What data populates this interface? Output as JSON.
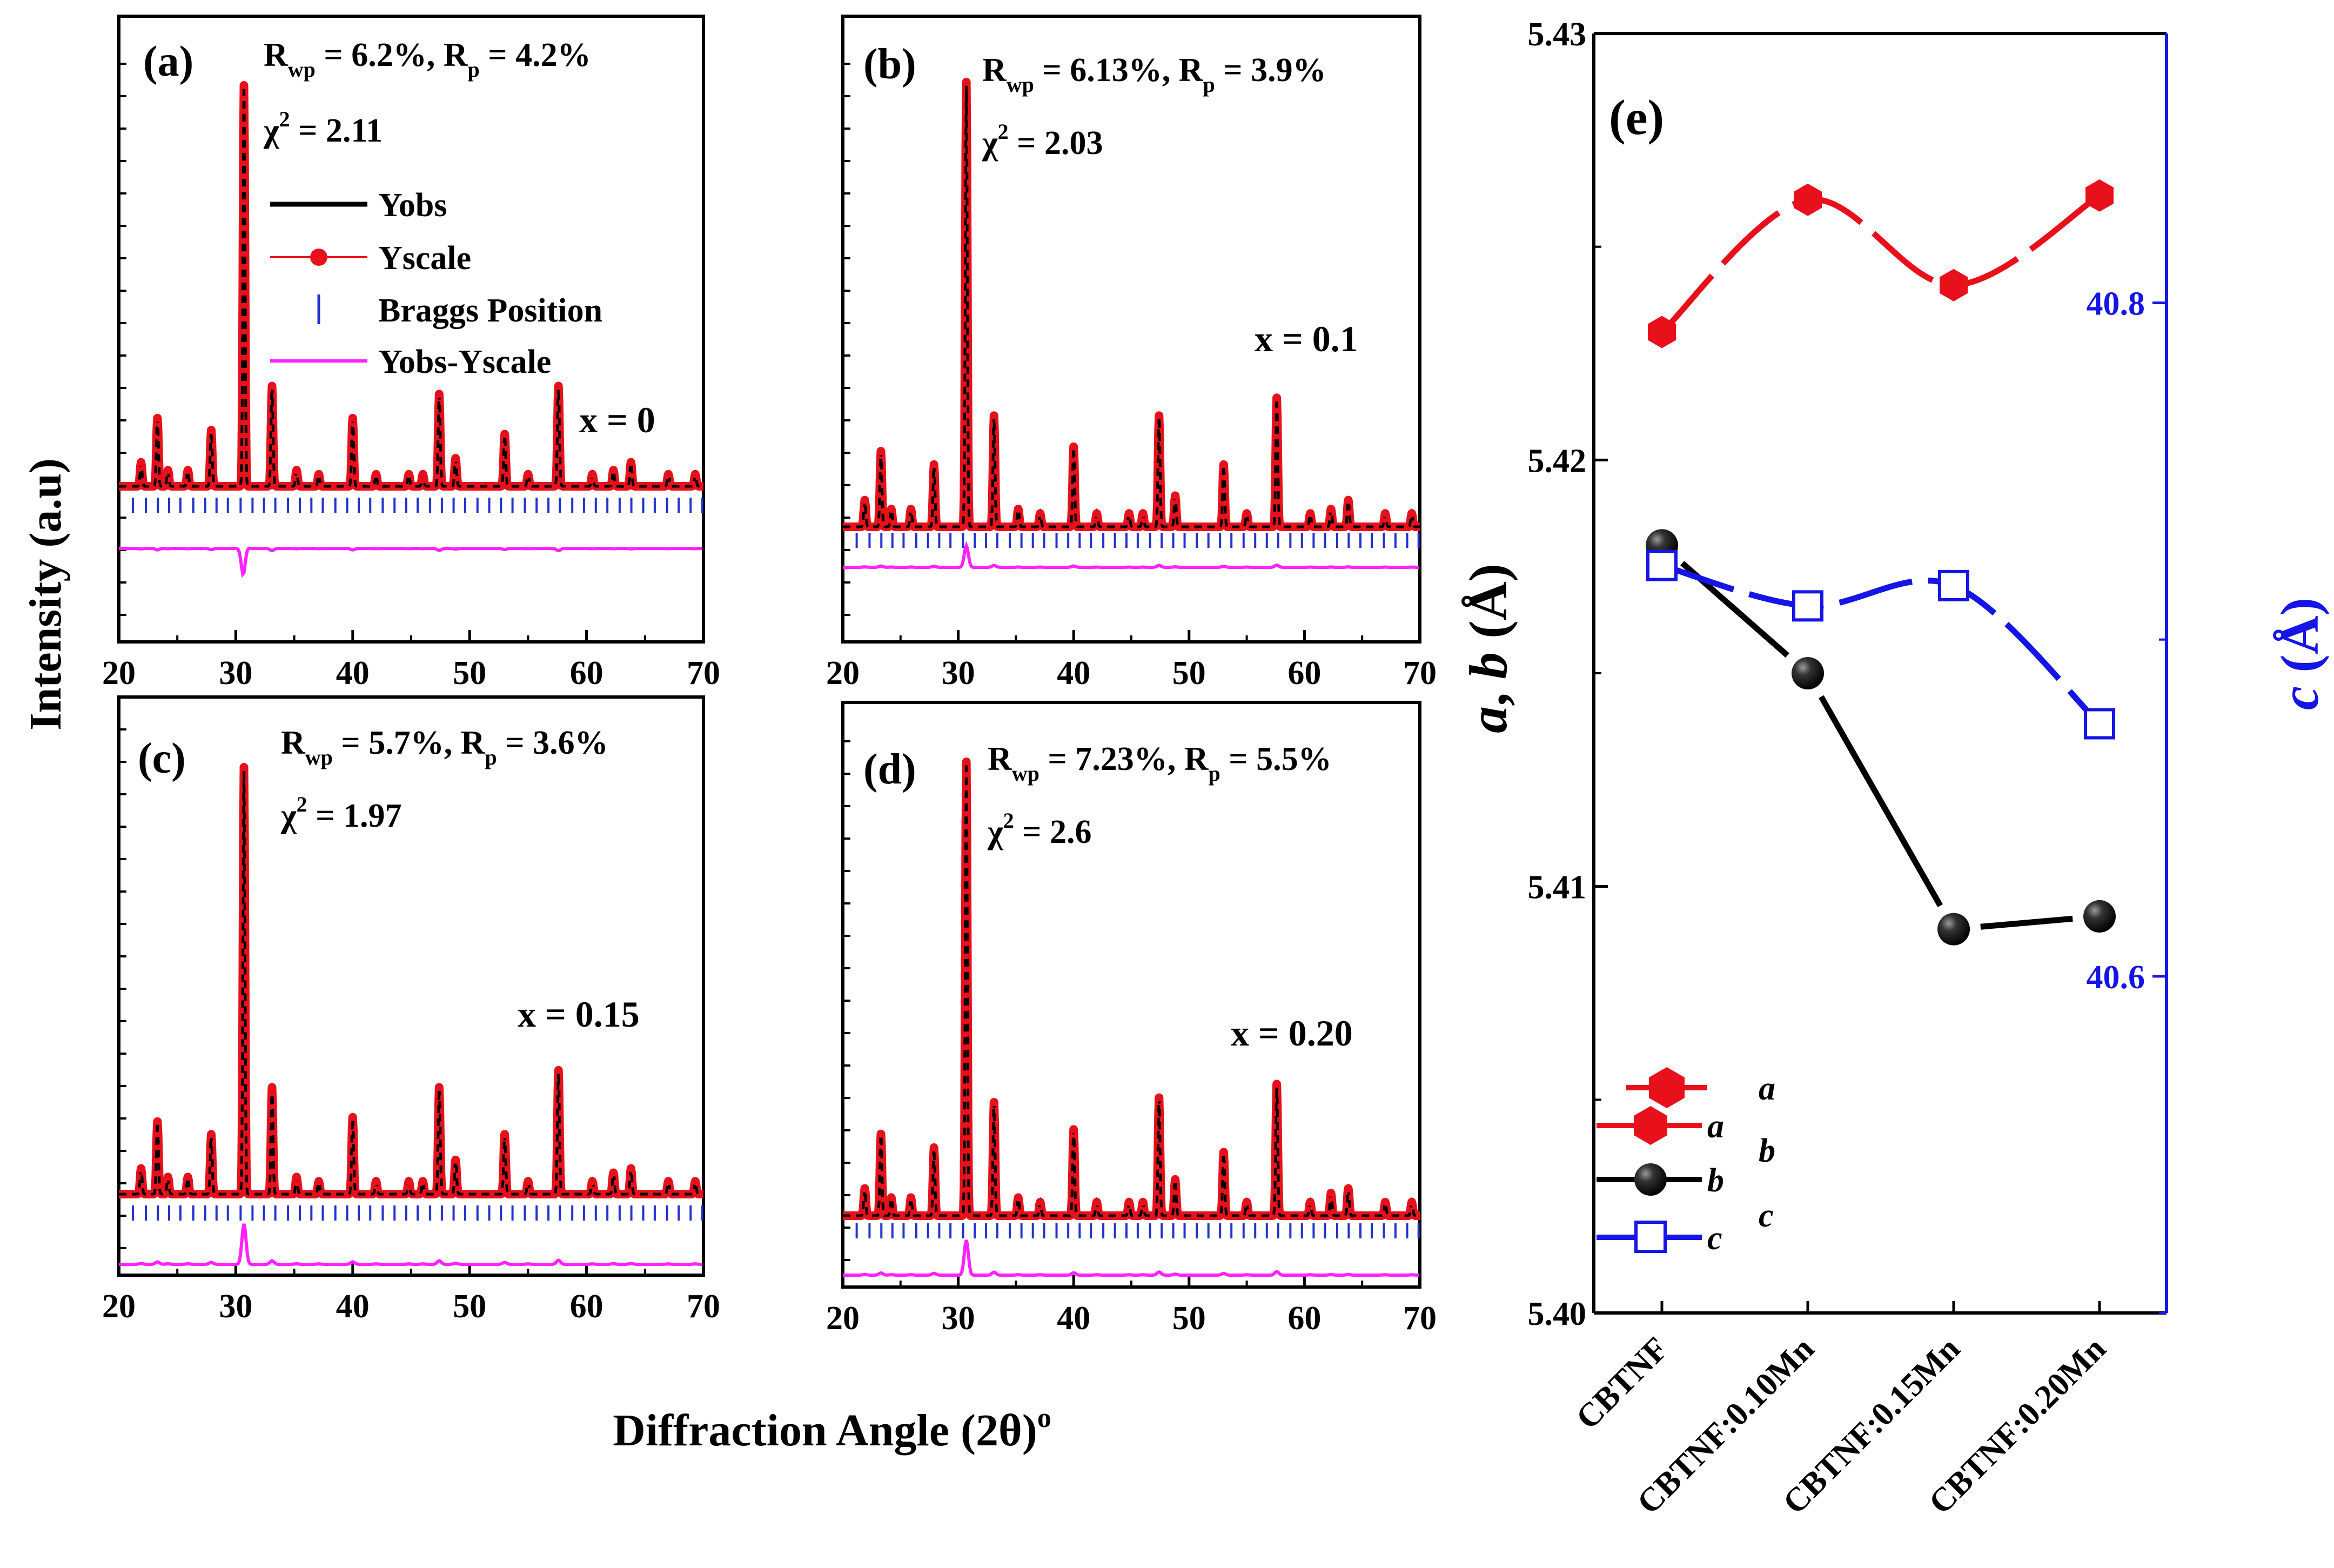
{
  "figure": {
    "y_axis_label": "Intensity (a.u)",
    "x_axis_label": "Diffraction Angle (2θ)",
    "x_axis_label_sup": "o"
  },
  "legend": {
    "yobs": "Yobs",
    "yscale": "Yscale",
    "bragg": "Braggs Position",
    "diff": "Yobs-Yscale"
  },
  "panels": [
    {
      "tag": "(a)",
      "rwp": "6.2%",
      "rp": "4.2%",
      "chi2": "2.11",
      "composition": "x = 0"
    },
    {
      "tag": "(b)",
      "rwp": "6.13%",
      "rp": "3.9%",
      "chi2": "2.03",
      "composition": "x = 0.1"
    },
    {
      "tag": "(c)",
      "rwp": "5.7%",
      "rp": "3.6%",
      "chi2": "1.97",
      "composition": "x = 0.15"
    },
    {
      "tag": "(d)",
      "rwp": "7.23%",
      "rp": "5.5%",
      "chi2": "2.6",
      "composition": "x = 0.20"
    }
  ],
  "panel_e": {
    "tag": "(e)",
    "legend": {
      "a_top": "a",
      "a": "a",
      "b_top": "b",
      "b": "b",
      "c_top": "c",
      "c": "c"
    }
  },
  "colors": {
    "yobs": "#000000",
    "yscale": "#e8111b",
    "bragg": "#2233cc",
    "diff": "#ff22ff",
    "right_axis": "#1515e6"
  },
  "chart_data": [
    {
      "type": "line",
      "panel": "(a)",
      "xlim": [
        20,
        70
      ],
      "x_ticks": [
        20,
        30,
        40,
        50,
        60,
        70
      ],
      "series": [
        {
          "name": "Yobs"
        },
        {
          "name": "Yscale"
        },
        {
          "name": "Braggs Position"
        },
        {
          "name": "Yobs-Yscale"
        }
      ],
      "peaks": [
        {
          "x": 21.9,
          "y": 0.06
        },
        {
          "x": 23.3,
          "y": 0.17
        },
        {
          "x": 24.2,
          "y": 0.04
        },
        {
          "x": 25.9,
          "y": 0.04
        },
        {
          "x": 27.9,
          "y": 0.14
        },
        {
          "x": 30.7,
          "y": 1.0
        },
        {
          "x": 33.1,
          "y": 0.25
        },
        {
          "x": 35.2,
          "y": 0.04
        },
        {
          "x": 37.1,
          "y": 0.03
        },
        {
          "x": 40.0,
          "y": 0.17
        },
        {
          "x": 42.0,
          "y": 0.03
        },
        {
          "x": 44.8,
          "y": 0.03
        },
        {
          "x": 46.0,
          "y": 0.03
        },
        {
          "x": 47.4,
          "y": 0.23
        },
        {
          "x": 48.8,
          "y": 0.07
        },
        {
          "x": 53.0,
          "y": 0.13
        },
        {
          "x": 55.0,
          "y": 0.03
        },
        {
          "x": 57.6,
          "y": 0.25
        },
        {
          "x": 60.5,
          "y": 0.03
        },
        {
          "x": 62.3,
          "y": 0.04
        },
        {
          "x": 63.8,
          "y": 0.06
        },
        {
          "x": 67.0,
          "y": 0.03
        },
        {
          "x": 69.3,
          "y": 0.03
        }
      ]
    },
    {
      "type": "line",
      "panel": "(b)",
      "xlim": [
        20,
        70
      ],
      "x_ticks": [
        20,
        30,
        40,
        50,
        60,
        70
      ],
      "series": [
        {
          "name": "Yobs"
        },
        {
          "name": "Yscale"
        },
        {
          "name": "Braggs Position"
        },
        {
          "name": "Yobs-Yscale"
        }
      ],
      "peaks": [
        {
          "x": 21.9,
          "y": 0.06
        },
        {
          "x": 23.3,
          "y": 0.17
        },
        {
          "x": 24.2,
          "y": 0.04
        },
        {
          "x": 25.9,
          "y": 0.04
        },
        {
          "x": 27.9,
          "y": 0.14
        },
        {
          "x": 30.7,
          "y": 1.0
        },
        {
          "x": 33.1,
          "y": 0.25
        },
        {
          "x": 35.2,
          "y": 0.04
        },
        {
          "x": 37.1,
          "y": 0.03
        },
        {
          "x": 40.0,
          "y": 0.18
        },
        {
          "x": 42.0,
          "y": 0.03
        },
        {
          "x": 44.8,
          "y": 0.03
        },
        {
          "x": 46.0,
          "y": 0.03
        },
        {
          "x": 47.4,
          "y": 0.25
        },
        {
          "x": 48.8,
          "y": 0.07
        },
        {
          "x": 53.0,
          "y": 0.14
        },
        {
          "x": 55.0,
          "y": 0.03
        },
        {
          "x": 57.6,
          "y": 0.29
        },
        {
          "x": 60.5,
          "y": 0.03
        },
        {
          "x": 62.3,
          "y": 0.04
        },
        {
          "x": 63.8,
          "y": 0.06
        },
        {
          "x": 67.0,
          "y": 0.03
        },
        {
          "x": 69.3,
          "y": 0.03
        }
      ]
    },
    {
      "type": "line",
      "panel": "(c)",
      "xlim": [
        20,
        70
      ],
      "x_ticks": [
        20,
        30,
        40,
        50,
        60,
        70
      ],
      "series": [
        {
          "name": "Yobs"
        },
        {
          "name": "Yscale"
        },
        {
          "name": "Braggs Position"
        },
        {
          "name": "Yobs-Yscale"
        }
      ],
      "peaks": [
        {
          "x": 21.9,
          "y": 0.06
        },
        {
          "x": 23.3,
          "y": 0.17
        },
        {
          "x": 24.2,
          "y": 0.04
        },
        {
          "x": 25.9,
          "y": 0.04
        },
        {
          "x": 27.9,
          "y": 0.14
        },
        {
          "x": 30.7,
          "y": 1.0
        },
        {
          "x": 33.1,
          "y": 0.25
        },
        {
          "x": 35.2,
          "y": 0.04
        },
        {
          "x": 37.1,
          "y": 0.03
        },
        {
          "x": 40.0,
          "y": 0.18
        },
        {
          "x": 42.0,
          "y": 0.03
        },
        {
          "x": 44.8,
          "y": 0.03
        },
        {
          "x": 46.0,
          "y": 0.03
        },
        {
          "x": 47.4,
          "y": 0.25
        },
        {
          "x": 48.8,
          "y": 0.08
        },
        {
          "x": 53.0,
          "y": 0.14
        },
        {
          "x": 55.0,
          "y": 0.03
        },
        {
          "x": 57.6,
          "y": 0.29
        },
        {
          "x": 60.5,
          "y": 0.03
        },
        {
          "x": 62.3,
          "y": 0.05
        },
        {
          "x": 63.8,
          "y": 0.06
        },
        {
          "x": 67.0,
          "y": 0.03
        },
        {
          "x": 69.3,
          "y": 0.03
        }
      ]
    },
    {
      "type": "line",
      "panel": "(d)",
      "xlim": [
        20,
        70
      ],
      "x_ticks": [
        20,
        30,
        40,
        50,
        60,
        70
      ],
      "series": [
        {
          "name": "Yobs"
        },
        {
          "name": "Yscale"
        },
        {
          "name": "Braggs Position"
        },
        {
          "name": "Yobs-Yscale"
        }
      ],
      "peaks": [
        {
          "x": 21.9,
          "y": 0.06
        },
        {
          "x": 23.3,
          "y": 0.18
        },
        {
          "x": 24.2,
          "y": 0.04
        },
        {
          "x": 25.9,
          "y": 0.04
        },
        {
          "x": 27.9,
          "y": 0.15
        },
        {
          "x": 30.7,
          "y": 1.0
        },
        {
          "x": 33.1,
          "y": 0.25
        },
        {
          "x": 35.2,
          "y": 0.04
        },
        {
          "x": 37.1,
          "y": 0.03
        },
        {
          "x": 40.0,
          "y": 0.19
        },
        {
          "x": 42.0,
          "y": 0.03
        },
        {
          "x": 44.8,
          "y": 0.03
        },
        {
          "x": 46.0,
          "y": 0.03
        },
        {
          "x": 47.4,
          "y": 0.26
        },
        {
          "x": 48.8,
          "y": 0.08
        },
        {
          "x": 53.0,
          "y": 0.14
        },
        {
          "x": 55.0,
          "y": 0.03
        },
        {
          "x": 57.6,
          "y": 0.29
        },
        {
          "x": 60.5,
          "y": 0.03
        },
        {
          "x": 62.3,
          "y": 0.05
        },
        {
          "x": 63.8,
          "y": 0.06
        },
        {
          "x": 67.0,
          "y": 0.03
        },
        {
          "x": 69.3,
          "y": 0.03
        }
      ]
    },
    {
      "type": "line",
      "panel": "(e)",
      "categories": [
        "CBTNF",
        "CBTNF:0.10Mn",
        "CBTNF:0.15Mn",
        "CBTNF:0.20Mn"
      ],
      "ylabel_left": "a, b (Å)",
      "ylabel_right": "c (Å)",
      "ylim_left": [
        5.4,
        5.43
      ],
      "y_ticks_left": [
        5.4,
        5.41,
        5.42,
        5.43
      ],
      "ylim_right": [
        40.5,
        40.88
      ],
      "y_ticks_right": [
        40.6,
        40.8
      ],
      "series": [
        {
          "name": "a",
          "axis": "left",
          "marker": "hexagon",
          "color": "#e8111b",
          "values": [
            5.423,
            5.4261,
            5.4241,
            5.4262
          ]
        },
        {
          "name": "b",
          "axis": "left",
          "marker": "sphere",
          "color": "#000000",
          "values": [
            5.418,
            5.415,
            5.409,
            5.4093
          ]
        },
        {
          "name": "c",
          "axis": "right",
          "marker": "open-square",
          "color": "#1515e6",
          "values": [
            40.722,
            40.71,
            40.716,
            40.675
          ]
        }
      ]
    }
  ]
}
